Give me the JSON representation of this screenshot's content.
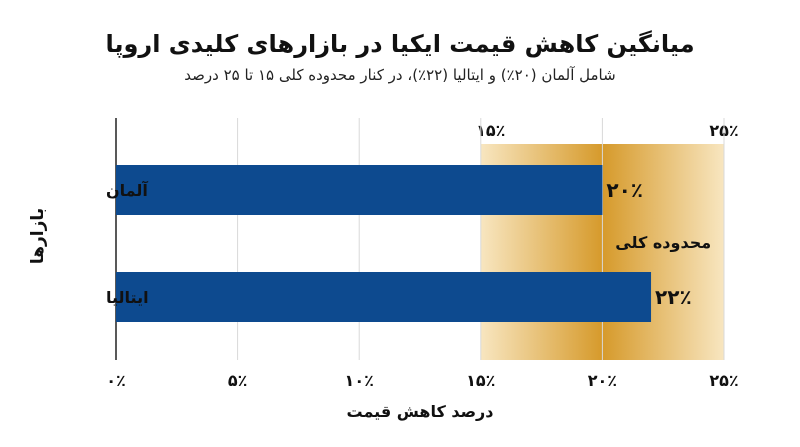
{
  "chart_data": {
    "type": "bar",
    "orientation": "horizontal",
    "title": "میانگین کاهش قیمت ایکیا در بازارهای کلیدی اروپا",
    "subtitle": "شامل آلمان (۲۰٪) و ایتالیا (۲۲٪)، در کنار محدوده کلی ۱۵ تا ۲۵ درصد",
    "xlabel": "درصد کاهش قیمت",
    "ylabel": "بازارها",
    "categories": [
      "آلمان",
      "ایتالیا"
    ],
    "values": [
      20,
      22
    ],
    "value_labels": [
      "۲۰٪",
      "۲۲٪"
    ],
    "xlim": [
      0,
      25
    ],
    "x_ticks": [
      0,
      5,
      10,
      15,
      20,
      25
    ],
    "x_tick_labels": [
      "۰٪",
      "۵٪",
      "۱۰٪",
      "۱۵٪",
      "۲۰٪",
      "۲۵٪"
    ],
    "grid": true,
    "range_band": {
      "from": 15,
      "to": 25,
      "label": "محدوده کلی",
      "edge_labels": [
        "۱۵٪",
        "۲۵٪"
      ]
    },
    "colors": {
      "bar": "#0d4a8f",
      "band_dark": "#d69a2b",
      "band_light": "#f8e6c0",
      "grid": "#d9d9d9",
      "text": "#111111"
    }
  }
}
